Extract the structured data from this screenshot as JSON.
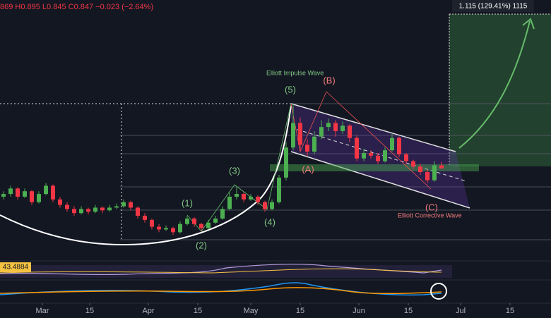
{
  "chart_data": {
    "type": "candlestick",
    "header": "869 H0.895 L0.845 C0.847 −0.023 (−2.64%)",
    "target_label": "1.115 (129.41%) 1115",
    "rsi_label": "43.4884",
    "annotations": {
      "impulse": "Elliott Impulse Wave",
      "w1": "(1)",
      "w2": "(2)",
      "w3": "(3)",
      "w4": "(4)",
      "w5": "(5)",
      "wa": "(A)",
      "wb": "(B)",
      "wc": "(C)",
      "corrective": "Elliott Corrective Wave"
    },
    "up_color": "#4caf50",
    "down_color": "#f23645",
    "ylim": [
      0.17,
      2.08
    ],
    "xticks": [
      {
        "value": 5.5,
        "label": "Mar"
      },
      {
        "value": 12.2,
        "label": "15"
      },
      {
        "value": 20.5,
        "label": "Apr"
      },
      {
        "value": 27.5,
        "label": "15"
      },
      {
        "value": 35,
        "label": "May"
      },
      {
        "value": 42,
        "label": "15"
      },
      {
        "value": 50.3,
        "label": "Jun"
      },
      {
        "value": 57.3,
        "label": "15"
      },
      {
        "value": 64.7,
        "label": "Jul"
      },
      {
        "value": 71.7,
        "label": "15"
      }
    ],
    "candles": [
      [
        0.64,
        0.68,
        0.62,
        0.66
      ],
      [
        0.66,
        0.72,
        0.64,
        0.7
      ],
      [
        0.7,
        0.71,
        0.62,
        0.64
      ],
      [
        0.64,
        0.7,
        0.63,
        0.68
      ],
      [
        0.68,
        0.69,
        0.58,
        0.6
      ],
      [
        0.6,
        0.68,
        0.59,
        0.66
      ],
      [
        0.66,
        0.74,
        0.65,
        0.72
      ],
      [
        0.72,
        0.73,
        0.6,
        0.62
      ],
      [
        0.62,
        0.64,
        0.56,
        0.58
      ],
      [
        0.58,
        0.6,
        0.53,
        0.55
      ],
      [
        0.55,
        0.57,
        0.5,
        0.52
      ],
      [
        0.52,
        0.57,
        0.51,
        0.55
      ],
      [
        0.55,
        0.56,
        0.51,
        0.53
      ],
      [
        0.53,
        0.58,
        0.52,
        0.56
      ],
      [
        0.56,
        0.57,
        0.52,
        0.54
      ],
      [
        0.54,
        0.58,
        0.53,
        0.56
      ],
      [
        0.56,
        0.59,
        0.55,
        0.57
      ],
      [
        0.57,
        0.62,
        0.56,
        0.6
      ],
      [
        0.6,
        0.61,
        0.54,
        0.56
      ],
      [
        0.56,
        0.57,
        0.48,
        0.5
      ],
      [
        0.5,
        0.52,
        0.45,
        0.47
      ],
      [
        0.47,
        0.48,
        0.4,
        0.42
      ],
      [
        0.42,
        0.44,
        0.38,
        0.4
      ],
      [
        0.4,
        0.43,
        0.39,
        0.41
      ],
      [
        0.41,
        0.42,
        0.36,
        0.38
      ],
      [
        0.38,
        0.46,
        0.37,
        0.44
      ],
      [
        0.44,
        0.5,
        0.43,
        0.48
      ],
      [
        0.48,
        0.49,
        0.42,
        0.44
      ],
      [
        0.44,
        0.45,
        0.39,
        0.41
      ],
      [
        0.41,
        0.47,
        0.4,
        0.45
      ],
      [
        0.45,
        0.5,
        0.44,
        0.48
      ],
      [
        0.48,
        0.57,
        0.47,
        0.55
      ],
      [
        0.55,
        0.67,
        0.54,
        0.64
      ],
      [
        0.64,
        0.71,
        0.62,
        0.66
      ],
      [
        0.66,
        0.67,
        0.6,
        0.62
      ],
      [
        0.62,
        0.66,
        0.61,
        0.64
      ],
      [
        0.64,
        0.65,
        0.58,
        0.6
      ],
      [
        0.6,
        0.61,
        0.53,
        0.55
      ],
      [
        0.55,
        0.62,
        0.54,
        0.6
      ],
      [
        0.6,
        0.8,
        0.59,
        0.78
      ],
      [
        0.78,
        1.04,
        0.76,
        1.0
      ],
      [
        1.0,
        1.32,
        0.98,
        1.18
      ],
      [
        1.18,
        1.22,
        0.98,
        1.02
      ],
      [
        1.02,
        1.06,
        0.94,
        0.97
      ],
      [
        0.97,
        1.12,
        0.95,
        1.08
      ],
      [
        1.08,
        1.2,
        1.06,
        1.15
      ],
      [
        1.15,
        1.21,
        1.12,
        1.18
      ],
      [
        1.18,
        1.2,
        1.08,
        1.12
      ],
      [
        1.12,
        1.19,
        1.1,
        1.16
      ],
      [
        1.16,
        1.17,
        1.04,
        1.07
      ],
      [
        1.07,
        1.09,
        0.9,
        0.92
      ],
      [
        0.92,
        0.99,
        0.9,
        0.96
      ],
      [
        0.96,
        0.98,
        0.92,
        0.94
      ],
      [
        0.94,
        0.96,
        0.88,
        0.9
      ],
      [
        0.9,
        1.0,
        0.89,
        0.98
      ],
      [
        0.98,
        1.1,
        0.97,
        1.07
      ],
      [
        1.07,
        1.08,
        0.93,
        0.95
      ],
      [
        0.95,
        0.96,
        0.88,
        0.9
      ],
      [
        0.9,
        0.91,
        0.84,
        0.86
      ],
      [
        0.86,
        0.88,
        0.8,
        0.82
      ],
      [
        0.82,
        0.84,
        0.74,
        0.76
      ],
      [
        0.76,
        0.9,
        0.75,
        0.87
      ],
      [
        0.869,
        0.895,
        0.845,
        0.847
      ]
    ]
  }
}
